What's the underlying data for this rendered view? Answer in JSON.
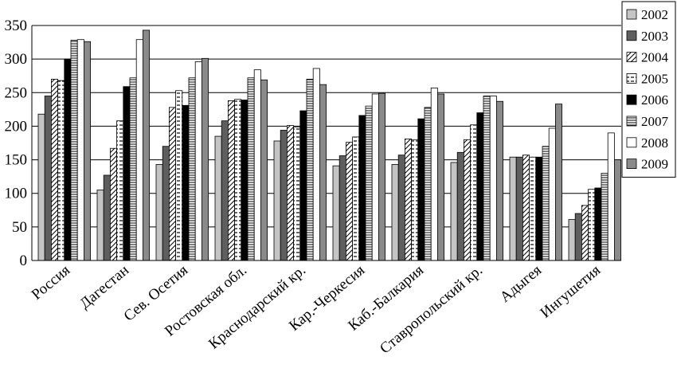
{
  "chart_data": {
    "type": "bar",
    "title": "",
    "xlabel": "",
    "ylabel": "",
    "ylim": [
      0,
      350
    ],
    "yticks": [
      0,
      50,
      100,
      150,
      200,
      250,
      300,
      350
    ],
    "grid": true,
    "legend_position": "top-right",
    "categories": [
      "Россия",
      "Дагестан",
      "Сев. Осетия",
      "Ростовская обл.",
      "Краснодарский кр.",
      "Кар.-Черкесия",
      "Каб.-Балкария",
      "Ставропольский кр.",
      "Адыгея",
      "Ингушетия"
    ],
    "series": [
      {
        "name": "2002",
        "pattern": "light-gray",
        "values": [
          218,
          105,
          143,
          185,
          178,
          141,
          143,
          146,
          154,
          61
        ]
      },
      {
        "name": "2003",
        "pattern": "dark-gray",
        "values": [
          245,
          127,
          170,
          208,
          194,
          156,
          157,
          161,
          154,
          70
        ]
      },
      {
        "name": "2004",
        "pattern": "diagonal",
        "values": [
          270,
          167,
          228,
          238,
          201,
          176,
          181,
          180,
          157,
          82
        ]
      },
      {
        "name": "2005",
        "pattern": "dashed",
        "values": [
          268,
          208,
          253,
          240,
          199,
          184,
          180,
          202,
          154,
          106
        ]
      },
      {
        "name": "2006",
        "pattern": "black",
        "values": [
          300,
          259,
          231,
          239,
          223,
          216,
          211,
          220,
          154,
          108
        ]
      },
      {
        "name": "2007",
        "pattern": "horizontal",
        "values": [
          328,
          272,
          272,
          272,
          270,
          230,
          228,
          245,
          170,
          130
        ]
      },
      {
        "name": "2008",
        "pattern": "white",
        "values": [
          329,
          329,
          296,
          284,
          286,
          248,
          257,
          245,
          197,
          190
        ]
      },
      {
        "name": "2009",
        "pattern": "medium-gray",
        "values": [
          326,
          343,
          301,
          269,
          262,
          249,
          248,
          237,
          233,
          150
        ]
      }
    ]
  }
}
